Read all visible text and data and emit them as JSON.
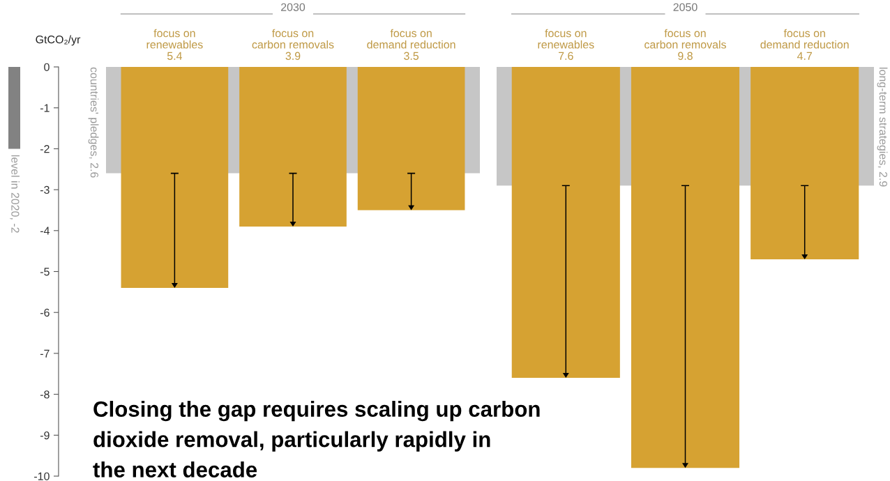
{
  "chart_data": [
    {
      "type": "bar",
      "categories": [
        null
      ],
      "series": [
        {
          "name": "level in 2020, -2",
          "color": "#828282",
          "values": [
            -2
          ]
        }
      ],
      "ylim": [
        -10,
        0
      ],
      "tick_labels": false
    },
    {
      "type": "bar",
      "title": "2030",
      "ylabel": "GtCO₂/yr",
      "categories": [
        "focus on\nrenewables\n5.4",
        "focus on\ncarbon removals\n3.9",
        "focus on\ndemand reduction\n3.5"
      ],
      "values": [
        -5.4,
        -3.9,
        -3.5
      ],
      "color": "#d6a232",
      "ylim": [
        -10,
        0
      ],
      "yticks": [
        0,
        -1,
        -2,
        -3,
        -4,
        -5,
        -6,
        -7,
        -8,
        -9,
        -10
      ],
      "bands": [
        {
          "axis": "y",
          "from": 0,
          "to": -2.6,
          "label": "countries' pledges, 2.6",
          "color": "#c6c6c6"
        }
      ],
      "annotations": [
        "Closing the gap requires scaling up carbon\ndioxide removal, particularly rapidly in\nthe next decade"
      ]
    },
    {
      "type": "bar",
      "title": "2050",
      "categories": [
        "focus on\nrenewables\n7.6",
        "focus on\ncarbon removals\n9.8",
        "focus on\ndemand reduction\n4.7"
      ],
      "values": [
        -7.6,
        -9.8,
        -4.7
      ],
      "color": "#d6a232",
      "ylim": [
        -10,
        0
      ],
      "bands": [
        {
          "axis": "y",
          "from": 0,
          "to": -2.9,
          "label": "long-term strategies, 2.9",
          "color": "#c6c6c6"
        }
      ],
      "tick_labels": "x"
    }
  ]
}
